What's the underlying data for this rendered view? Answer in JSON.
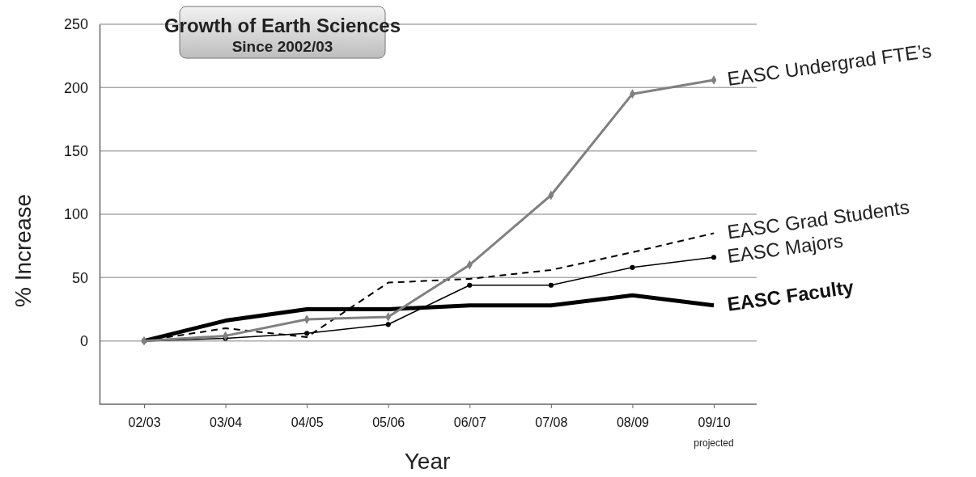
{
  "chart_data": {
    "type": "line",
    "title": "Growth of Earth Sciences",
    "subtitle": "Since 2002/03",
    "xlabel": "Year",
    "ylabel": "% Increase",
    "categories": [
      "02/03",
      "03/04",
      "04/05",
      "05/06",
      "06/07",
      "07/08",
      "08/09",
      "09/10"
    ],
    "ylim": [
      -50,
      250
    ],
    "yticks": [
      0,
      50,
      100,
      150,
      200,
      250
    ],
    "grid": "y",
    "annotations": [
      "projected"
    ],
    "series": [
      {
        "name": "EASC Faculty",
        "color": "#000000",
        "line_style": "solid",
        "marker": "none",
        "values": [
          0,
          16,
          25,
          25,
          28,
          28,
          36,
          28
        ]
      },
      {
        "name": "EASC Majors",
        "color": "#000000",
        "line_style": "solid",
        "marker": "circle",
        "values": [
          0,
          2,
          6,
          13,
          44,
          44,
          58,
          66
        ]
      },
      {
        "name": "EASC Grad Students",
        "color": "#000000",
        "line_style": "dashed",
        "marker": "none",
        "values": [
          0,
          10,
          3,
          46,
          49,
          56,
          70,
          85
        ]
      },
      {
        "name": "EASC Undergrad FTE’s",
        "color": "#808080",
        "line_style": "solid",
        "marker": "diamond",
        "values": [
          0,
          4,
          17,
          19,
          60,
          115,
          195,
          206
        ]
      }
    ]
  }
}
